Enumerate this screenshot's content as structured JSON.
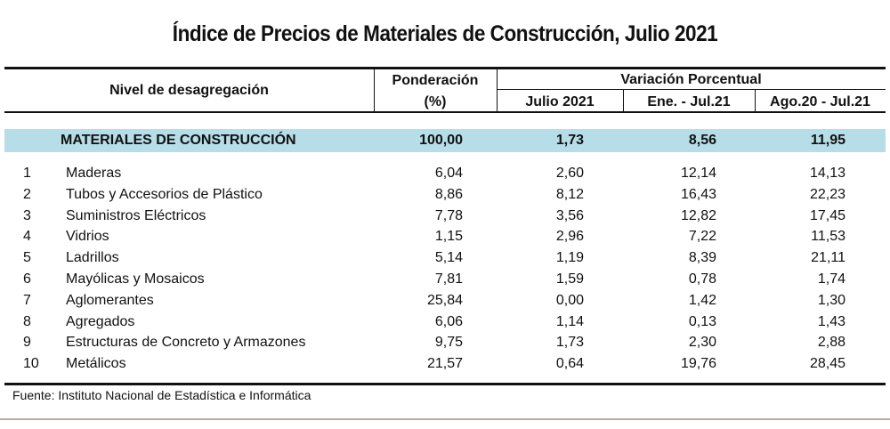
{
  "title": "Índice de Precios de Materiales de Construcción, Julio 2021",
  "headers": {
    "nivel": "Nivel de desagregación",
    "ponderacion": "Ponderación",
    "ponderacion_unit": "(%)",
    "variacion": "Variación Porcentual",
    "julio": "Julio 2021",
    "ene_jul": "Ene. - Jul.21",
    "ago_jul": "Ago.20 - Jul.21"
  },
  "highlight_color": "#b7dde8",
  "total": {
    "label": "MATERIALES DE CONSTRUCCIÓN",
    "ponderacion": "100,00",
    "julio": "1,73",
    "ene_jul": "8,56",
    "ago_jul": "11,95"
  },
  "rows": [
    {
      "n": "1",
      "name": "Maderas",
      "ponderacion": "6,04",
      "julio": "2,60",
      "ene_jul": "12,14",
      "ago_jul": "14,13"
    },
    {
      "n": "2",
      "name": "Tubos y Accesorios de Plástico",
      "ponderacion": "8,86",
      "julio": "8,12",
      "ene_jul": "16,43",
      "ago_jul": "22,23"
    },
    {
      "n": "3",
      "name": "Suministros Eléctricos",
      "ponderacion": "7,78",
      "julio": "3,56",
      "ene_jul": "12,82",
      "ago_jul": "17,45"
    },
    {
      "n": "4",
      "name": "Vidrios",
      "ponderacion": "1,15",
      "julio": "2,96",
      "ene_jul": "7,22",
      "ago_jul": "11,53"
    },
    {
      "n": "5",
      "name": "Ladrillos",
      "ponderacion": "5,14",
      "julio": "1,19",
      "ene_jul": "8,39",
      "ago_jul": "21,11"
    },
    {
      "n": "6",
      "name": "Mayólicas y Mosaicos",
      "ponderacion": "7,81",
      "julio": "1,59",
      "ene_jul": "0,78",
      "ago_jul": "1,74"
    },
    {
      "n": "7",
      "name": "Aglomerantes",
      "ponderacion": "25,84",
      "julio": "0,00",
      "ene_jul": "1,42",
      "ago_jul": "1,30"
    },
    {
      "n": "8",
      "name": "Agregados",
      "ponderacion": "6,06",
      "julio": "1,14",
      "ene_jul": "0,13",
      "ago_jul": "1,43"
    },
    {
      "n": "9",
      "name": "Estructuras de Concreto y Armazones",
      "ponderacion": "9,75",
      "julio": "1,73",
      "ene_jul": "2,30",
      "ago_jul": "2,88"
    },
    {
      "n": "10",
      "name": "Metálicos",
      "ponderacion": "21,57",
      "julio": "0,64",
      "ene_jul": "19,76",
      "ago_jul": "28,45"
    }
  ],
  "source": "Fuente: Instituto Nacional de Estadística e Informática"
}
